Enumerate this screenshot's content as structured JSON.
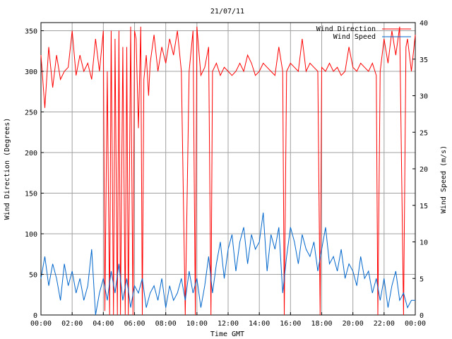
{
  "chart_data": {
    "type": "line",
    "title": "21/07/11",
    "xlabel": "Time GMT",
    "ylabel": "Wind Direction (Degrees)",
    "y2label": "Wind Speed (m/s)",
    "xlim": [
      0,
      24
    ],
    "ylim": [
      0,
      360
    ],
    "y2lim": [
      0,
      40
    ],
    "grid": true,
    "legend_position": "top-right",
    "x_ticks": [
      {
        "value": 0,
        "label": "00:00"
      },
      {
        "value": 2,
        "label": "02:00"
      },
      {
        "value": 4,
        "label": "04:00"
      },
      {
        "value": 6,
        "label": "06:00"
      },
      {
        "value": 8,
        "label": "08:00"
      },
      {
        "value": 10,
        "label": "10:00"
      },
      {
        "value": 12,
        "label": "12:00"
      },
      {
        "value": 14,
        "label": "14:00"
      },
      {
        "value": 16,
        "label": "16:00"
      },
      {
        "value": 18,
        "label": "18:00"
      },
      {
        "value": 20,
        "label": "20:00"
      },
      {
        "value": 22,
        "label": "22:00"
      },
      {
        "value": 24,
        "label": "00:00"
      }
    ],
    "y_ticks": [
      0,
      50,
      100,
      150,
      200,
      250,
      300,
      350
    ],
    "y2_ticks": [
      0,
      5,
      10,
      15,
      20,
      25,
      30,
      35,
      40
    ],
    "series": [
      {
        "name": "Wind Direction",
        "axis": "left",
        "color": "#ff0000",
        "x": [
          0,
          0.25,
          0.5,
          0.75,
          1,
          1.25,
          1.5,
          1.75,
          2,
          2.25,
          2.5,
          2.75,
          3,
          3.25,
          3.5,
          3.75,
          4,
          4.1,
          4.25,
          4.4,
          4.5,
          4.65,
          4.75,
          4.9,
          5,
          5.1,
          5.25,
          5.4,
          5.5,
          5.6,
          5.75,
          5.9,
          6,
          6.1,
          6.25,
          6.4,
          6.5,
          6.6,
          6.75,
          6.9,
          7,
          7.25,
          7.5,
          7.75,
          8,
          8.25,
          8.5,
          8.75,
          9,
          9.25,
          9.5,
          9.75,
          9.9,
          10,
          10.25,
          10.5,
          10.75,
          10.9,
          11,
          11.25,
          11.5,
          11.75,
          12,
          12.25,
          12.5,
          12.75,
          13,
          13.25,
          13.5,
          13.75,
          14,
          14.25,
          14.5,
          14.75,
          15,
          15.25,
          15.5,
          15.6,
          15.75,
          16,
          16.25,
          16.5,
          16.75,
          17,
          17.25,
          17.5,
          17.75,
          17.9,
          18,
          18.25,
          18.5,
          18.75,
          19,
          19.25,
          19.5,
          19.75,
          20,
          20.25,
          20.5,
          20.75,
          21,
          21.25,
          21.5,
          21.6,
          21.75,
          22,
          22.25,
          22.5,
          22.75,
          23,
          23.25,
          23.4,
          23.5,
          23.75,
          24
        ],
        "values": [
          320,
          255,
          330,
          280,
          320,
          290,
          300,
          305,
          350,
          295,
          320,
          300,
          310,
          290,
          340,
          300,
          350,
          5,
          300,
          0,
          350,
          0,
          340,
          0,
          350,
          0,
          330,
          0,
          330,
          0,
          355,
          0,
          350,
          340,
          230,
          355,
          0,
          290,
          320,
          270,
          310,
          345,
          300,
          330,
          310,
          340,
          320,
          350,
          300,
          0,
          300,
          350,
          0,
          355,
          295,
          305,
          330,
          0,
          300,
          310,
          295,
          305,
          300,
          295,
          300,
          310,
          300,
          320,
          310,
          295,
          300,
          310,
          305,
          300,
          295,
          330,
          300,
          0,
          300,
          310,
          305,
          300,
          340,
          300,
          310,
          305,
          300,
          0,
          305,
          300,
          310,
          300,
          305,
          295,
          300,
          330,
          305,
          300,
          310,
          305,
          300,
          310,
          295,
          0,
          300,
          340,
          310,
          350,
          320,
          355,
          0,
          330,
          340,
          300,
          345
        ]
      },
      {
        "name": "Wind Speed",
        "axis": "right",
        "color": "#0066cc",
        "x": [
          0,
          0.25,
          0.5,
          0.75,
          1,
          1.25,
          1.5,
          1.75,
          2,
          2.25,
          2.5,
          2.75,
          3,
          3.25,
          3.5,
          3.75,
          4,
          4.25,
          4.5,
          4.75,
          5,
          5.25,
          5.5,
          5.75,
          6,
          6.25,
          6.5,
          6.75,
          7,
          7.25,
          7.5,
          7.75,
          8,
          8.25,
          8.5,
          8.75,
          9,
          9.25,
          9.5,
          9.75,
          10,
          10.25,
          10.5,
          10.75,
          11,
          11.25,
          11.5,
          11.75,
          12,
          12.25,
          12.5,
          12.75,
          13,
          13.25,
          13.5,
          13.75,
          14,
          14.25,
          14.5,
          14.75,
          15,
          15.25,
          15.5,
          15.75,
          16,
          16.25,
          16.5,
          16.75,
          17,
          17.25,
          17.5,
          17.75,
          18,
          18.25,
          18.5,
          18.75,
          19,
          19.25,
          19.5,
          19.75,
          20,
          20.25,
          20.5,
          20.75,
          21,
          21.25,
          21.5,
          21.75,
          22,
          22.25,
          22.5,
          22.75,
          23,
          23.25,
          23.5,
          23.75,
          24
        ],
        "values": [
          5,
          8,
          4,
          7,
          5,
          2,
          7,
          4,
          6,
          3,
          5,
          2,
          4,
          9,
          0,
          3,
          5,
          2,
          6,
          3,
          7,
          2,
          5,
          1,
          4,
          3,
          5,
          1,
          3,
          4,
          2,
          5,
          1,
          4,
          2,
          3,
          5,
          2,
          6,
          3,
          5,
          1,
          4,
          8,
          3,
          7,
          10,
          5,
          9,
          11,
          6,
          10,
          12,
          7,
          11,
          9,
          10,
          14,
          6,
          11,
          9,
          12,
          3,
          8,
          12,
          10,
          7,
          11,
          9,
          8,
          10,
          6,
          9,
          12,
          7,
          8,
          6,
          9,
          5,
          7,
          6,
          4,
          8,
          5,
          6,
          3,
          5,
          2,
          5,
          1,
          4,
          6,
          2,
          3,
          1,
          2,
          2
        ]
      }
    ]
  }
}
